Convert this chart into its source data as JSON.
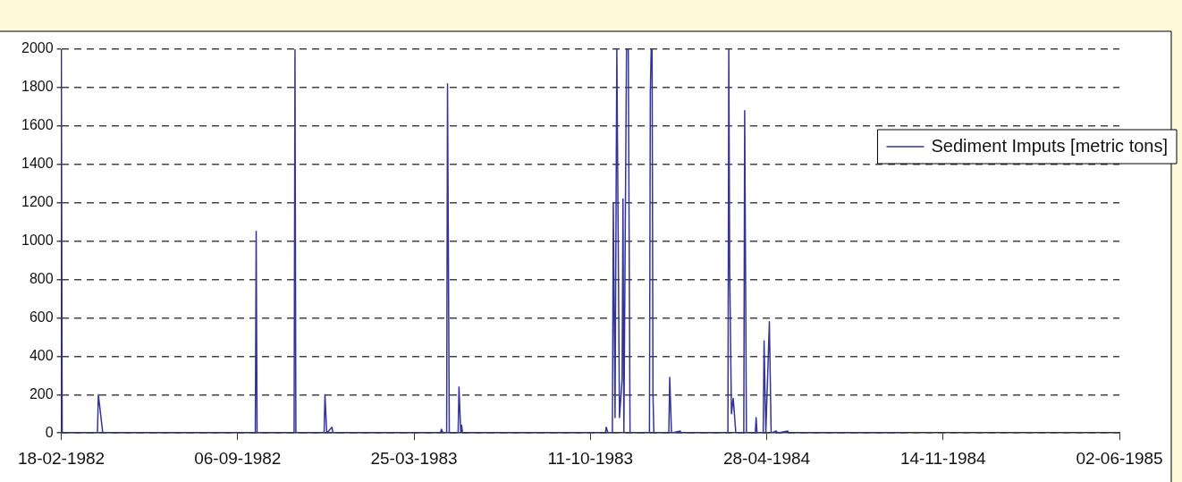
{
  "chart_data": {
    "type": "line",
    "xlim": [
      "1982-02-18",
      "1985-06-02"
    ],
    "xticks": [
      {
        "value": "1982-02-18",
        "label": "18-02-1982"
      },
      {
        "value": "1982-09-06",
        "label": "06-09-1982"
      },
      {
        "value": "1983-03-25",
        "label": "25-03-1983"
      },
      {
        "value": "1983-10-11",
        "label": "11-10-1983"
      },
      {
        "value": "1984-04-28",
        "label": "28-04-1984"
      },
      {
        "value": "1984-11-14",
        "label": "14-11-1984"
      },
      {
        "value": "1985-06-02",
        "label": "02-06-1985"
      }
    ],
    "ylim": [
      0,
      2000
    ],
    "yticks": [
      0,
      200,
      400,
      600,
      800,
      1000,
      1200,
      1400,
      1600,
      1800,
      2000
    ],
    "grid": "y",
    "legend": "top right",
    "marker": "none",
    "line_style": "solid",
    "series": [
      {
        "name": "Sediment Imputs [metric tons]",
        "color": "#333399",
        "x": [
          "1982-02-18",
          "1982-02-19",
          "1982-03-31",
          "1982-04-01",
          "1982-04-06",
          "1982-09-26",
          "1982-09-27",
          "1982-09-28",
          "1982-11-09",
          "1982-11-10",
          "1982-11-11",
          "1982-12-13",
          "1982-12-14",
          "1982-12-16",
          "1982-12-22",
          "1982-12-23",
          "1983-04-24",
          "1983-04-25",
          "1983-04-27",
          "1983-05-01",
          "1983-05-02",
          "1983-05-04",
          "1983-05-14",
          "1983-05-15",
          "1983-05-17",
          "1983-05-18",
          "1983-05-19",
          "1983-10-28",
          "1983-10-29",
          "1983-10-31",
          "1983-11-05",
          "1983-11-06",
          "1983-11-08",
          "1983-11-10",
          "1983-11-13",
          "1983-11-16",
          "1983-11-17",
          "1983-11-18",
          "1983-11-21",
          "1983-11-23",
          "1983-11-25",
          "1983-12-17",
          "1983-12-18",
          "1983-12-19",
          "1983-12-20",
          "1983-12-21",
          "1983-12-22",
          "1984-01-08",
          "1984-01-09",
          "1984-01-11",
          "1984-01-21",
          "1984-01-22",
          "1984-03-15",
          "1984-03-16",
          "1984-03-17",
          "1984-03-19",
          "1984-03-21",
          "1984-03-24",
          "1984-04-02",
          "1984-04-03",
          "1984-04-05",
          "1984-04-15",
          "1984-04-16",
          "1984-04-17",
          "1984-04-24",
          "1984-04-25",
          "1984-04-27",
          "1984-05-01",
          "1984-05-03",
          "1984-05-09",
          "1984-05-10",
          "1984-05-22",
          "1984-05-23",
          "1984-10-01"
        ],
        "values": [
          2000,
          0,
          0,
          200,
          0,
          0,
          1050,
          0,
          0,
          2000,
          0,
          0,
          200,
          0,
          30,
          0,
          0,
          20,
          0,
          0,
          1820,
          0,
          0,
          240,
          0,
          40,
          0,
          0,
          30,
          0,
          0,
          1200,
          80,
          2000,
          80,
          280,
          1220,
          0,
          2000,
          2000,
          0,
          0,
          1780,
          2000,
          2000,
          200,
          0,
          0,
          290,
          0,
          10,
          0,
          0,
          2000,
          850,
          100,
          180,
          0,
          0,
          1680,
          0,
          0,
          80,
          0,
          0,
          480,
          0,
          580,
          0,
          10,
          0,
          10,
          0,
          0
        ]
      }
    ]
  }
}
